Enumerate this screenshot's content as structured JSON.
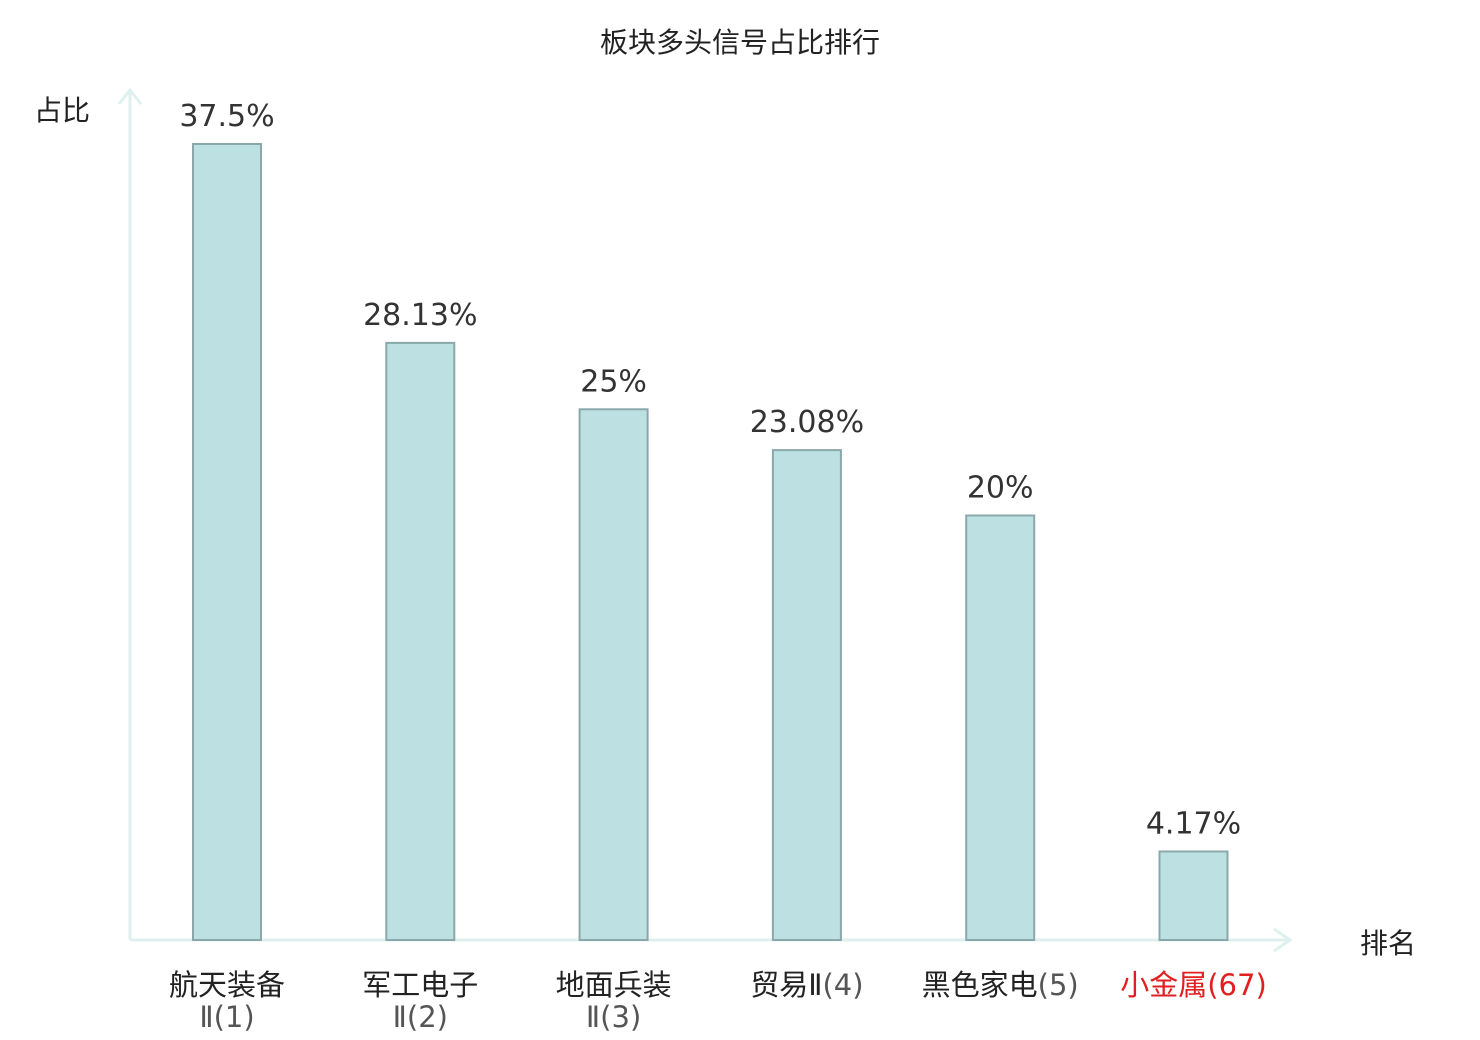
{
  "chart_data": {
    "type": "bar",
    "title": "板块多头信号占比排行",
    "ylabel": "占比",
    "xlabel": "排名",
    "ylim": [
      0,
      37.5
    ],
    "grid": false,
    "legend": "none",
    "categories": [
      {
        "name": "航天装备",
        "rank": "Ⅱ(1)",
        "highlight": false
      },
      {
        "name": "军工电子",
        "rank": "Ⅱ(2)",
        "highlight": false
      },
      {
        "name": "地面兵装",
        "rank": "Ⅱ(3)",
        "highlight": false
      },
      {
        "name": "贸易Ⅱ",
        "rank": "(4)",
        "highlight": false
      },
      {
        "name": "黑色家电",
        "rank": "(5)",
        "highlight": false
      },
      {
        "name": "小金属",
        "rank": "(67)",
        "highlight": true
      }
    ],
    "values": [
      37.5,
      28.13,
      25,
      23.08,
      20,
      4.17
    ],
    "value_labels": [
      "37.5%",
      "28.13%",
      "25%",
      "23.08%",
      "20%",
      "4.17%"
    ]
  },
  "colors": {
    "bar_fill": "#bde0e2",
    "bar_stroke": "#8aa8aa",
    "axis": "#dff1ef",
    "highlight": "#e02020",
    "text": "#222222",
    "sub_text": "#555555"
  }
}
